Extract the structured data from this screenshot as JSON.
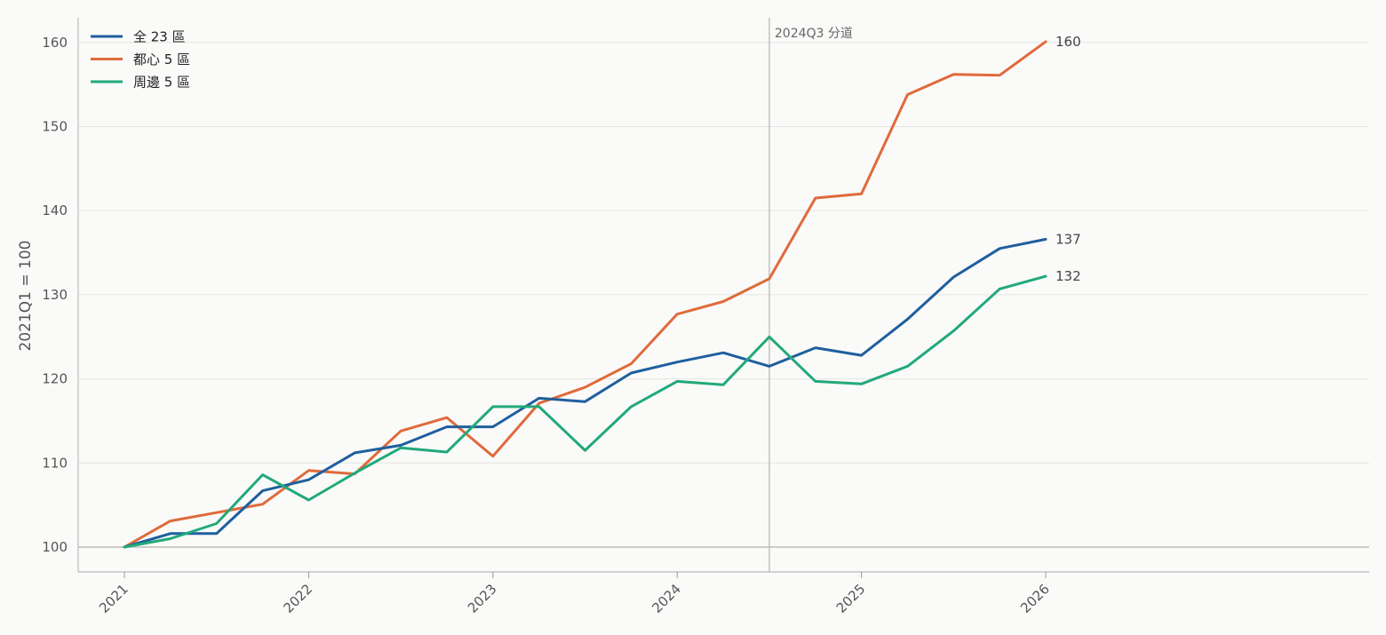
{
  "chart_data": {
    "type": "line",
    "title": "",
    "xlabel": "",
    "ylabel": "2021Q1 = 100",
    "ylim": [
      97,
      163
    ],
    "yticks": [
      100,
      110,
      120,
      130,
      140,
      150,
      160
    ],
    "xlim": [
      2020.75,
      2027.75
    ],
    "xticks": [
      "2021",
      "2022",
      "2023",
      "2024",
      "2025",
      "2026"
    ],
    "x": [
      "2021Q1",
      "2021Q2",
      "2021Q3",
      "2021Q4",
      "2022Q1",
      "2022Q2",
      "2022Q3",
      "2022Q4",
      "2023Q1",
      "2023Q2",
      "2023Q3",
      "2023Q4",
      "2024Q1",
      "2024Q2",
      "2024Q3",
      "2024Q4",
      "2025Q1",
      "2025Q2",
      "2025Q3",
      "2025Q4",
      "2026Q1"
    ],
    "series": [
      {
        "name": "全 23 區",
        "color": "#1f5f9e",
        "values": [
          100,
          101.6,
          101.6,
          106.7,
          108.0,
          111.2,
          112.1,
          114.3,
          114.3,
          117.7,
          117.3,
          120.7,
          122.0,
          123.1,
          121.5,
          123.7,
          122.8,
          127.1,
          132.1,
          135.5,
          136.6
        ],
        "end_label": "137"
      },
      {
        "name": "都心 5 區",
        "color": "#e06a3b",
        "values": [
          100,
          103.1,
          104.1,
          105.1,
          109.1,
          108.7,
          113.8,
          115.4,
          110.8,
          117.1,
          119.0,
          121.8,
          127.7,
          129.2,
          131.9,
          141.5,
          142.0,
          153.8,
          156.2,
          156.1,
          160.1
        ],
        "end_label": "160"
      },
      {
        "name": "周邊 5 區",
        "color": "#22a97a",
        "values": [
          100,
          101.0,
          102.8,
          108.6,
          105.6,
          108.8,
          111.8,
          111.3,
          116.7,
          116.7,
          111.5,
          116.7,
          119.7,
          119.3,
          125.0,
          119.7,
          119.4,
          121.5,
          125.7,
          130.7,
          132.2
        ],
        "end_label": "132"
      }
    ],
    "annotation": {
      "x": "2024Q3",
      "text": "2024Q3 分道"
    },
    "legend_position": "top-left",
    "grid": "horizontal"
  }
}
